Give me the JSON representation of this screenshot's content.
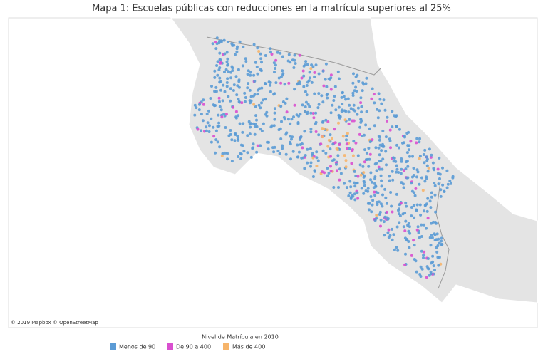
{
  "title": "Mapa 1: Escuelas públicas con reducciones en la matrícula superiores al 25%",
  "map": {
    "attribution": "© 2019 Mapbox © OpenStreetMap"
  },
  "legend": {
    "title": "Nivel de Matrícula en 2010",
    "items": [
      {
        "label": "Menos de 90",
        "color": "#5b9bd5"
      },
      {
        "label": "De 90 a 400",
        "color": "#d94fcf"
      },
      {
        "label": "Más de 400",
        "color": "#f6b46a"
      }
    ]
  }
}
